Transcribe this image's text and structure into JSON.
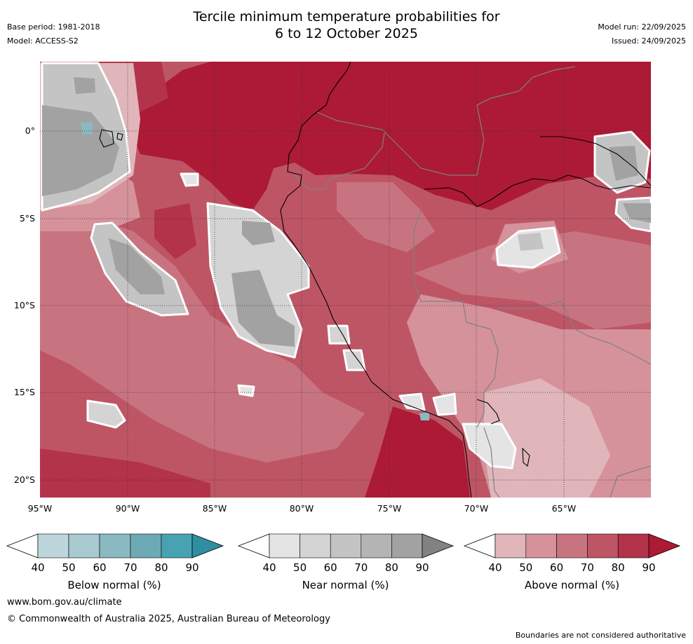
{
  "title": {
    "line1": "Tercile minimum temperature probabilities for",
    "line2": "6 to 12 October 2025"
  },
  "meta": {
    "base_period": "Base period: 1981-2018",
    "model": "Model: ACCESS-S2",
    "model_run": "Model run: 22/09/2025",
    "issued": "Issued: 24/09/2025"
  },
  "axes": {
    "lat_labels": [
      "0°",
      "5°S",
      "10°S",
      "15°S",
      "20°S"
    ],
    "lon_labels": [
      "95°W",
      "90°W",
      "85°W",
      "80°W",
      "75°W",
      "70°W",
      "65°W"
    ]
  },
  "colorbars": {
    "below": {
      "label": "Below normal (%)",
      "ticks": [
        "40",
        "50",
        "60",
        "70",
        "80",
        "90"
      ],
      "colors": [
        "#ffffff",
        "#bdd6dc",
        "#a7c9cf",
        "#8bb9c2",
        "#6eaab5",
        "#49a2b1",
        "#2e8fa0"
      ]
    },
    "near": {
      "label": "Near normal (%)",
      "ticks": [
        "40",
        "50",
        "60",
        "70",
        "80",
        "90"
      ],
      "colors": [
        "#ffffff",
        "#e4e4e4",
        "#d4d4d4",
        "#c4c4c4",
        "#b4b4b4",
        "#a2a2a2",
        "#828282"
      ]
    },
    "above": {
      "label": "Above normal (%)",
      "ticks": [
        "40",
        "50",
        "60",
        "70",
        "80",
        "90"
      ],
      "colors": [
        "#ffffff",
        "#e0b6bb",
        "#d5929b",
        "#c87480",
        "#be5565",
        "#b3334a",
        "#ac1a35"
      ]
    }
  },
  "footer": {
    "website": "www.bom.gov.au/climate",
    "copyright": "© Commonwealth of Australia 2025, Australian Bureau of Meteorology",
    "disclaimer": "Boundaries are not considered authoritative"
  }
}
